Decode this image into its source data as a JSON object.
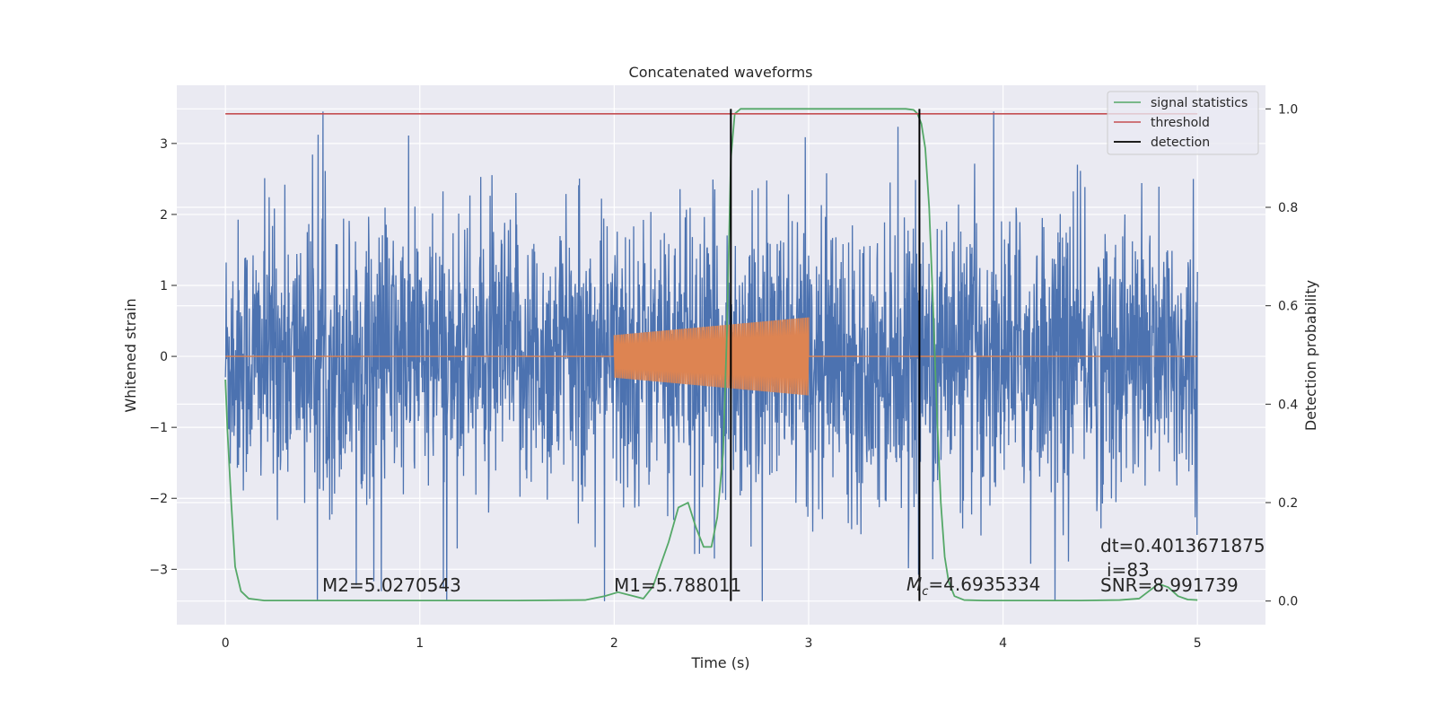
{
  "chart_data": {
    "type": "line",
    "title": "Concatenated waveforms",
    "xlabel": "Time (s)",
    "ylabel": "Whitened strain",
    "y2label": "Detection probability",
    "xlim": [
      -0.25,
      5.35
    ],
    "ylim": [
      -3.78,
      3.82
    ],
    "y2lim": [
      -0.048,
      1.048
    ],
    "x_ticks": [
      "0",
      "1",
      "2",
      "3",
      "4",
      "5"
    ],
    "x_tick_values": [
      0,
      1,
      2,
      3,
      4,
      5
    ],
    "y_ticks": [
      "−3",
      "−2",
      "−1",
      "0",
      "1",
      "2",
      "3"
    ],
    "y_tick_values": [
      -3,
      -2,
      -1,
      0,
      1,
      2,
      3
    ],
    "y2_ticks": [
      "0.0",
      "0.2",
      "0.4",
      "0.6",
      "0.8",
      "1.0"
    ],
    "y2_tick_values": [
      0.0,
      0.2,
      0.4,
      0.6,
      0.8,
      1.0
    ],
    "grid": true,
    "legend_position": "top-right",
    "series": [
      {
        "key": "strain",
        "axis": "left",
        "color": "#4c72b0",
        "description_range": [
          0,
          5
        ],
        "typical_abs_max": 1.8,
        "min": -3.45,
        "max": 3.45
      },
      {
        "key": "template",
        "axis": "left",
        "color": "#dd8452",
        "segment": [
          2.0,
          3.0
        ],
        "amplitude_start": 0.3,
        "amplitude_end": 0.55
      },
      {
        "name": "signal statistics",
        "axis": "right",
        "color": "#55a868",
        "x": [
          0,
          0.01,
          0.03,
          0.05,
          0.08,
          0.12,
          0.2,
          0.5,
          1.0,
          1.5,
          1.85,
          1.95,
          2.02,
          2.08,
          2.15,
          2.2,
          2.28,
          2.33,
          2.38,
          2.42,
          2.46,
          2.5,
          2.53,
          2.56,
          2.58,
          2.6,
          2.62,
          2.65,
          3.0,
          3.4,
          3.5,
          3.54,
          3.56,
          3.58,
          3.6,
          3.62,
          3.64,
          3.66,
          3.68,
          3.7,
          3.72,
          3.75,
          3.8,
          3.9,
          4.1,
          4.4,
          4.6,
          4.7,
          4.75,
          4.8,
          4.85,
          4.9,
          4.95,
          5.0
        ],
        "values": [
          0.45,
          0.35,
          0.2,
          0.07,
          0.02,
          0.005,
          0.001,
          0.001,
          0.001,
          0.001,
          0.002,
          0.01,
          0.018,
          0.012,
          0.005,
          0.03,
          0.12,
          0.19,
          0.2,
          0.15,
          0.11,
          0.11,
          0.17,
          0.3,
          0.55,
          0.9,
          0.99,
          1.0,
          1.0,
          1.0,
          1.0,
          0.998,
          0.99,
          0.97,
          0.92,
          0.8,
          0.6,
          0.38,
          0.2,
          0.09,
          0.04,
          0.01,
          0.002,
          0.001,
          0.001,
          0.001,
          0.002,
          0.005,
          0.02,
          0.035,
          0.028,
          0.01,
          0.003,
          0.002
        ]
      },
      {
        "name": "threshold",
        "axis": "right",
        "color": "#c44e52",
        "x": [
          0,
          5
        ],
        "values": [
          0.99,
          0.99
        ]
      },
      {
        "name": "detection",
        "axis": "right",
        "color": "#000000",
        "vlines_x": [
          2.6,
          3.57
        ],
        "y_range": [
          0.0,
          1.0
        ]
      }
    ],
    "annotations": [
      {
        "key": "m2",
        "text": "M2=5.0270543"
      },
      {
        "key": "m1",
        "text": "M1=5.788011"
      },
      {
        "key": "mc_sym",
        "text": "M"
      },
      {
        "key": "mc_sub",
        "text": "c"
      },
      {
        "key": "mc_val",
        "text": "=4.6935334"
      },
      {
        "key": "dt",
        "text": "dt=0.4013671875"
      },
      {
        "key": "i",
        "text": "i=83"
      },
      {
        "key": "snr",
        "text": "SNR=8.991739"
      }
    ],
    "colors": {
      "plot_background": "#eaeaf2",
      "grid": "#ffffff"
    }
  }
}
